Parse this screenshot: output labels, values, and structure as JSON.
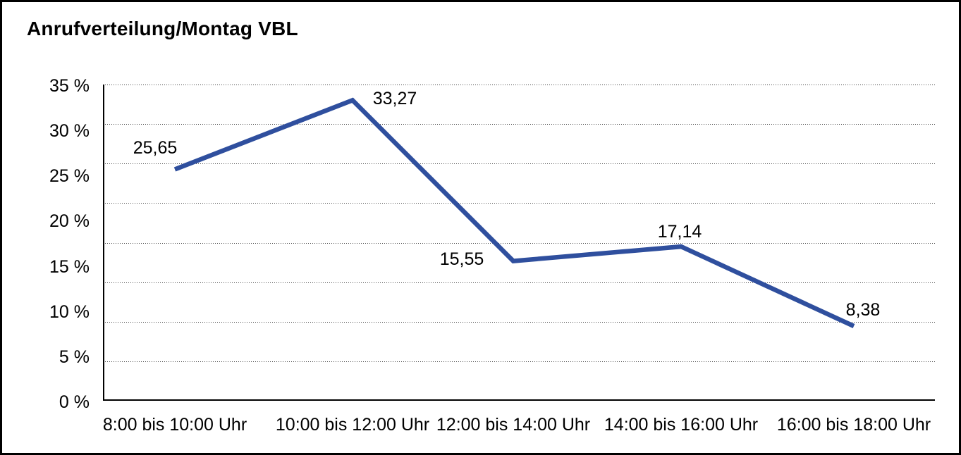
{
  "colors": {
    "line": "#2f4f9e",
    "axis": "#000000",
    "grid": "#444444",
    "text": "#000000",
    "background": "#ffffff",
    "frame_border": "#000000"
  },
  "chart_data": {
    "type": "line",
    "title": "Anrufverteilung/Montag VBL",
    "categories": [
      "8:00 bis 10:00 Uhr",
      "10:00 bis 12:00 Uhr",
      "12:00 bis 14:00 Uhr",
      "14:00 bis 16:00 Uhr",
      "16:00 bis 18:00 Uhr"
    ],
    "values": [
      25.65,
      33.27,
      15.55,
      17.14,
      8.38
    ],
    "value_labels": [
      "25,65",
      "33,27",
      "15,55",
      "17,14",
      "8,38"
    ],
    "xlabel": "",
    "ylabel": "",
    "ylim": [
      0,
      35
    ],
    "ytick_interval": 5,
    "ytick_labels": [
      "35 %",
      "30 %",
      "25 %",
      "20 %",
      "15 %",
      "10 %",
      "5 %",
      "0 %"
    ],
    "grid": "horizontal-dotted",
    "legend": "none",
    "markers": "none"
  }
}
